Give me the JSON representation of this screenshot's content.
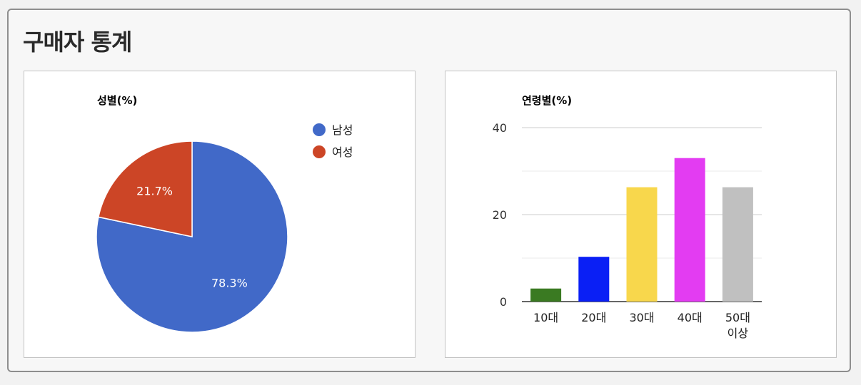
{
  "panel": {
    "title": "구매자 통계"
  },
  "chart_data": [
    {
      "type": "pie",
      "title": "성별(%)",
      "categories": [
        "남성",
        "여성"
      ],
      "values": [
        78.3,
        21.7
      ],
      "data_labels": [
        "78.3%",
        "21.7%"
      ],
      "colors": [
        "#4169c8",
        "#cc4526"
      ],
      "legend": "right"
    },
    {
      "type": "bar",
      "title": "연령별(%)",
      "categories": [
        "10대",
        "20대",
        "30대",
        "40대",
        "50대 이상"
      ],
      "values": [
        3,
        10.3,
        26.3,
        33,
        26.3
      ],
      "colors": [
        "#3a7a22",
        "#0a1ff5",
        "#f8d74c",
        "#e33cf2",
        "#c0c0c0"
      ],
      "ylim": [
        0,
        40
      ],
      "yticks": [
        "0",
        "20",
        "40"
      ],
      "grid": true
    }
  ]
}
